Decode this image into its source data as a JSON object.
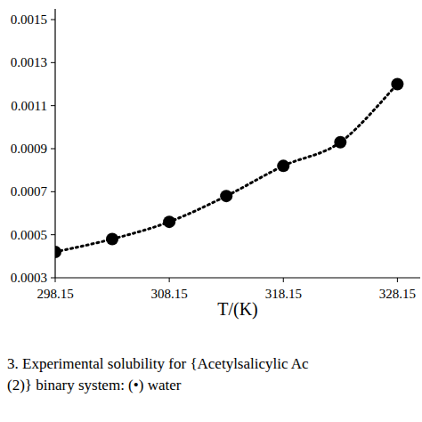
{
  "chart_data": {
    "type": "scatter",
    "x_label": "T/(K)",
    "caption": [
      "3. Experimental solubility for {Acetylsalicylic Ac",
      "(2)} binary system: (•) water"
    ],
    "series": [
      {
        "name": "water",
        "color": "#000000",
        "marker": "circle",
        "line_style": "dotted",
        "x": [
          298.15,
          303.15,
          308.15,
          313.15,
          318.15,
          323.15,
          328.15
        ],
        "values": [
          0.00042,
          0.00048,
          0.00056,
          0.00068,
          0.00082,
          0.00093,
          0.0012
        ]
      }
    ],
    "xlim": [
      298.15,
      330.15
    ],
    "xticks": [
      298.15,
      308.15,
      318.15,
      328.15
    ],
    "ylim": [
      0.0003,
      0.0015
    ],
    "yticks": [
      0.0003,
      0.0005,
      0.0007,
      0.0009,
      0.0011,
      0.0013,
      0.0015
    ],
    "grid": false
  }
}
